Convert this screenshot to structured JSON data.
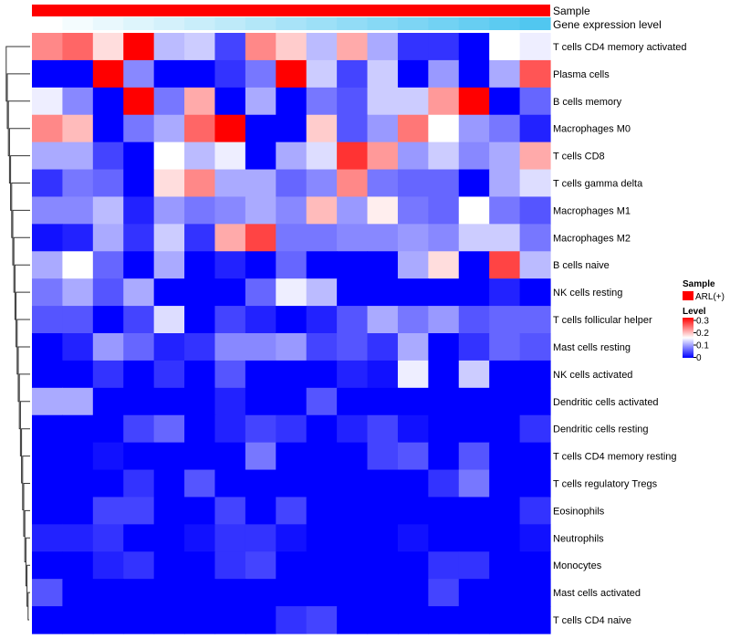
{
  "chart_data": {
    "type": "heatmap",
    "annotations": [
      {
        "name": "Sample",
        "color": "#ff0000"
      },
      {
        "name": "Gene expression level",
        "colors": [
          "#ffffff",
          "#51c7f0"
        ]
      }
    ],
    "column_count": 17,
    "rows": [
      "T cells CD4 memory activated",
      "Plasma cells",
      "B cells memory",
      "Macrophages M0",
      "T cells CD8",
      "T cells gamma delta",
      "Macrophages M1",
      "Macrophages M2",
      "B cells naive",
      "NK cells resting",
      "T cells follicular helper",
      "Mast cells resting",
      "NK cells activated",
      "Dendritic cells activated",
      "Dendritic cells resting",
      "T cells CD4 memory resting",
      "T cells regulatory  Tregs",
      "Eosinophils",
      "Neutrophils",
      "Monocytes",
      "Mast cells activated",
      "T cells CD4 naive"
    ],
    "values": [
      [
        0.22,
        0.24,
        0.17,
        0.3,
        0.11,
        0.12,
        0.04,
        0.22,
        0.18,
        0.11,
        0.2,
        0.1,
        0.03,
        0.03,
        0.0,
        0.15,
        0.14
      ],
      [
        0.0,
        0.0,
        0.3,
        0.08,
        0.0,
        0.0,
        0.03,
        0.07,
        0.3,
        0.12,
        0.04,
        0.12,
        0.0,
        0.09,
        0.0,
        0.1,
        0.25
      ],
      [
        0.14,
        0.08,
        0.0,
        0.3,
        0.07,
        0.2,
        0.0,
        0.1,
        0.0,
        0.07,
        0.05,
        0.12,
        0.12,
        0.21,
        0.3,
        0.0,
        0.06
      ],
      [
        0.22,
        0.19,
        0.0,
        0.07,
        0.1,
        0.24,
        0.3,
        0.0,
        0.0,
        0.18,
        0.05,
        0.09,
        0.23,
        0.15,
        0.09,
        0.07,
        0.02
      ],
      [
        0.1,
        0.1,
        0.04,
        0.0,
        0.15,
        0.11,
        0.14,
        0.0,
        0.1,
        0.13,
        0.27,
        0.21,
        0.09,
        0.12,
        0.08,
        0.1,
        0.2
      ],
      [
        0.03,
        0.07,
        0.06,
        0.0,
        0.17,
        0.22,
        0.1,
        0.1,
        0.06,
        0.08,
        0.22,
        0.07,
        0.06,
        0.06,
        0.0,
        0.1,
        0.13
      ],
      [
        0.08,
        0.08,
        0.11,
        0.02,
        0.09,
        0.07,
        0.08,
        0.1,
        0.08,
        0.19,
        0.09,
        0.16,
        0.07,
        0.06,
        0.15,
        0.07,
        0.05
      ],
      [
        0.01,
        0.02,
        0.1,
        0.03,
        0.12,
        0.03,
        0.2,
        0.26,
        0.07,
        0.07,
        0.08,
        0.08,
        0.09,
        0.08,
        0.12,
        0.12,
        0.07
      ],
      [
        0.1,
        0.15,
        0.06,
        0.0,
        0.1,
        0.0,
        0.02,
        0.0,
        0.06,
        0.0,
        0.0,
        0.0,
        0.1,
        0.17,
        0.0,
        0.26,
        0.11
      ],
      [
        0.07,
        0.1,
        0.05,
        0.1,
        0.0,
        0.0,
        0.0,
        0.06,
        0.14,
        0.11,
        0.0,
        0.0,
        0.0,
        0.0,
        0.0,
        0.02,
        0.0
      ],
      [
        0.05,
        0.05,
        0.0,
        0.04,
        0.13,
        0.0,
        0.04,
        0.02,
        0.0,
        0.02,
        0.05,
        0.1,
        0.07,
        0.09,
        0.05,
        0.06,
        0.06
      ],
      [
        0.0,
        0.02,
        0.09,
        0.06,
        0.02,
        0.03,
        0.08,
        0.08,
        0.09,
        0.04,
        0.05,
        0.03,
        0.1,
        0.0,
        0.03,
        0.06,
        0.05
      ],
      [
        0.0,
        0.0,
        0.03,
        0.0,
        0.03,
        0.0,
        0.05,
        0.0,
        0.0,
        0.0,
        0.02,
        0.01,
        0.14,
        0.0,
        0.12,
        0.0,
        0.0
      ],
      [
        0.1,
        0.1,
        0.0,
        0.0,
        0.0,
        0.0,
        0.02,
        0.0,
        0.0,
        0.05,
        0.0,
        0.0,
        0.0,
        0.0,
        0.0,
        0.0,
        0.0
      ],
      [
        0.0,
        0.0,
        0.0,
        0.04,
        0.06,
        0.0,
        0.02,
        0.04,
        0.03,
        0.0,
        0.02,
        0.04,
        0.01,
        0.0,
        0.0,
        0.0,
        0.03
      ],
      [
        0.0,
        0.0,
        0.01,
        0.0,
        0.0,
        0.0,
        0.0,
        0.07,
        0.0,
        0.0,
        0.0,
        0.04,
        0.05,
        0.0,
        0.05,
        0.0,
        0.0
      ],
      [
        0.0,
        0.0,
        0.0,
        0.03,
        0.0,
        0.05,
        0.0,
        0.0,
        0.0,
        0.0,
        0.0,
        0.0,
        0.0,
        0.03,
        0.07,
        0.0,
        0.0
      ],
      [
        0.0,
        0.0,
        0.04,
        0.04,
        0.0,
        0.0,
        0.04,
        0.0,
        0.04,
        0.0,
        0.0,
        0.0,
        0.0,
        0.0,
        0.0,
        0.0,
        0.03
      ],
      [
        0.02,
        0.02,
        0.03,
        0.0,
        0.0,
        0.01,
        0.03,
        0.03,
        0.01,
        0.0,
        0.0,
        0.0,
        0.01,
        0.0,
        0.0,
        0.0,
        0.01
      ],
      [
        0.0,
        0.0,
        0.02,
        0.03,
        0.0,
        0.0,
        0.03,
        0.04,
        0.0,
        0.0,
        0.0,
        0.0,
        0.0,
        0.03,
        0.03,
        0.0,
        0.0
      ],
      [
        0.05,
        0.0,
        0.0,
        0.0,
        0.0,
        0.0,
        0.0,
        0.0,
        0.0,
        0.0,
        0.0,
        0.0,
        0.0,
        0.04,
        0.0,
        0.0,
        0.0
      ],
      [
        0.0,
        0.0,
        0.0,
        0.0,
        0.0,
        0.0,
        0.0,
        0.0,
        0.03,
        0.04,
        0.0,
        0.0,
        0.0,
        0.0,
        0.0,
        0.0,
        0.0
      ]
    ],
    "gene_expression_level": [
      0.0,
      0.05,
      0.1,
      0.15,
      0.2,
      0.25,
      0.3,
      0.35,
      0.4,
      0.45,
      0.5,
      0.55,
      0.6,
      0.65,
      0.7,
      0.75,
      0.8
    ],
    "color_scale": {
      "low": "#0000ff",
      "mid": "#ffffff",
      "high": "#ff0000",
      "range": [
        0,
        0.3
      ]
    },
    "legend": {
      "sample_title": "Sample",
      "sample_label": "ARL(+)",
      "level_title": "Level",
      "level_ticks": [
        "0.3",
        "0.2",
        "0.1",
        "0"
      ]
    },
    "dendrogram": "left",
    "colors": {
      "accent": "#ff0000",
      "annotation_light": "#51c7f0"
    }
  }
}
